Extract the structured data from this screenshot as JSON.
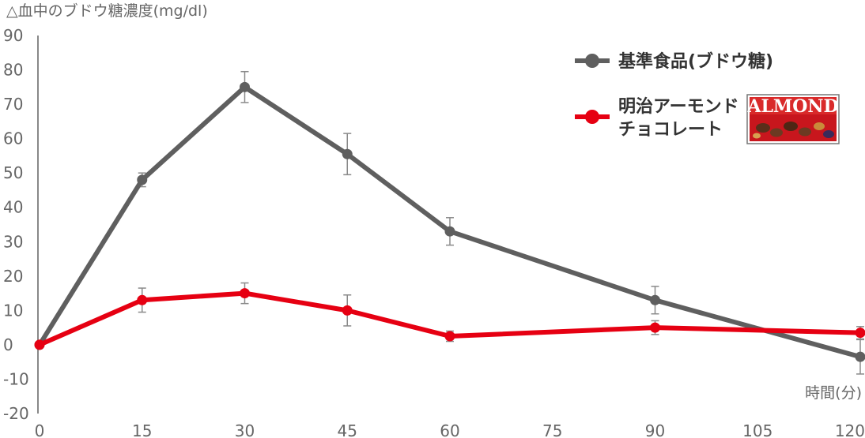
{
  "chart_data": {
    "type": "line",
    "ylabel": "△血中のブドウ糖濃度(mg/dl)",
    "xlabel": "時間(分)",
    "xlim": [
      0,
      120
    ],
    "ylim": [
      -20,
      90
    ],
    "x_ticks": [
      "0",
      "15",
      "30",
      "45",
      "60",
      "75",
      "90",
      "105",
      "120"
    ],
    "y_ticks": [
      "90",
      "80",
      "70",
      "60",
      "50",
      "40",
      "30",
      "20",
      "10",
      "0",
      "-10",
      "-20"
    ],
    "grid": false,
    "legend_position": "top-right",
    "series": [
      {
        "name": "基準食品(ブドウ糖)",
        "color": "#5f5f5f",
        "x": [
          0,
          15,
          30,
          45,
          60,
          90,
          120
        ],
        "y": [
          0,
          48,
          75,
          55.5,
          33,
          13,
          -3.5
        ],
        "error": [
          0,
          2,
          4.5,
          6,
          4,
          4,
          5
        ]
      },
      {
        "name": "明治アーモンドチョコレート",
        "name_lines": [
          "明治アーモンド",
          "チョコレート"
        ],
        "color": "#e60012",
        "x": [
          0,
          15,
          30,
          45,
          60,
          90,
          120
        ],
        "y": [
          0,
          13,
          15,
          10,
          2.5,
          5,
          3.5
        ],
        "error": [
          0,
          3.5,
          3,
          4.5,
          1.5,
          2,
          1.8
        ]
      }
    ]
  },
  "legend": {
    "logo_text": "ALMOND",
    "logo_icon": "almond-chocolate-package-icon",
    "logo_color": "#c8161d"
  }
}
